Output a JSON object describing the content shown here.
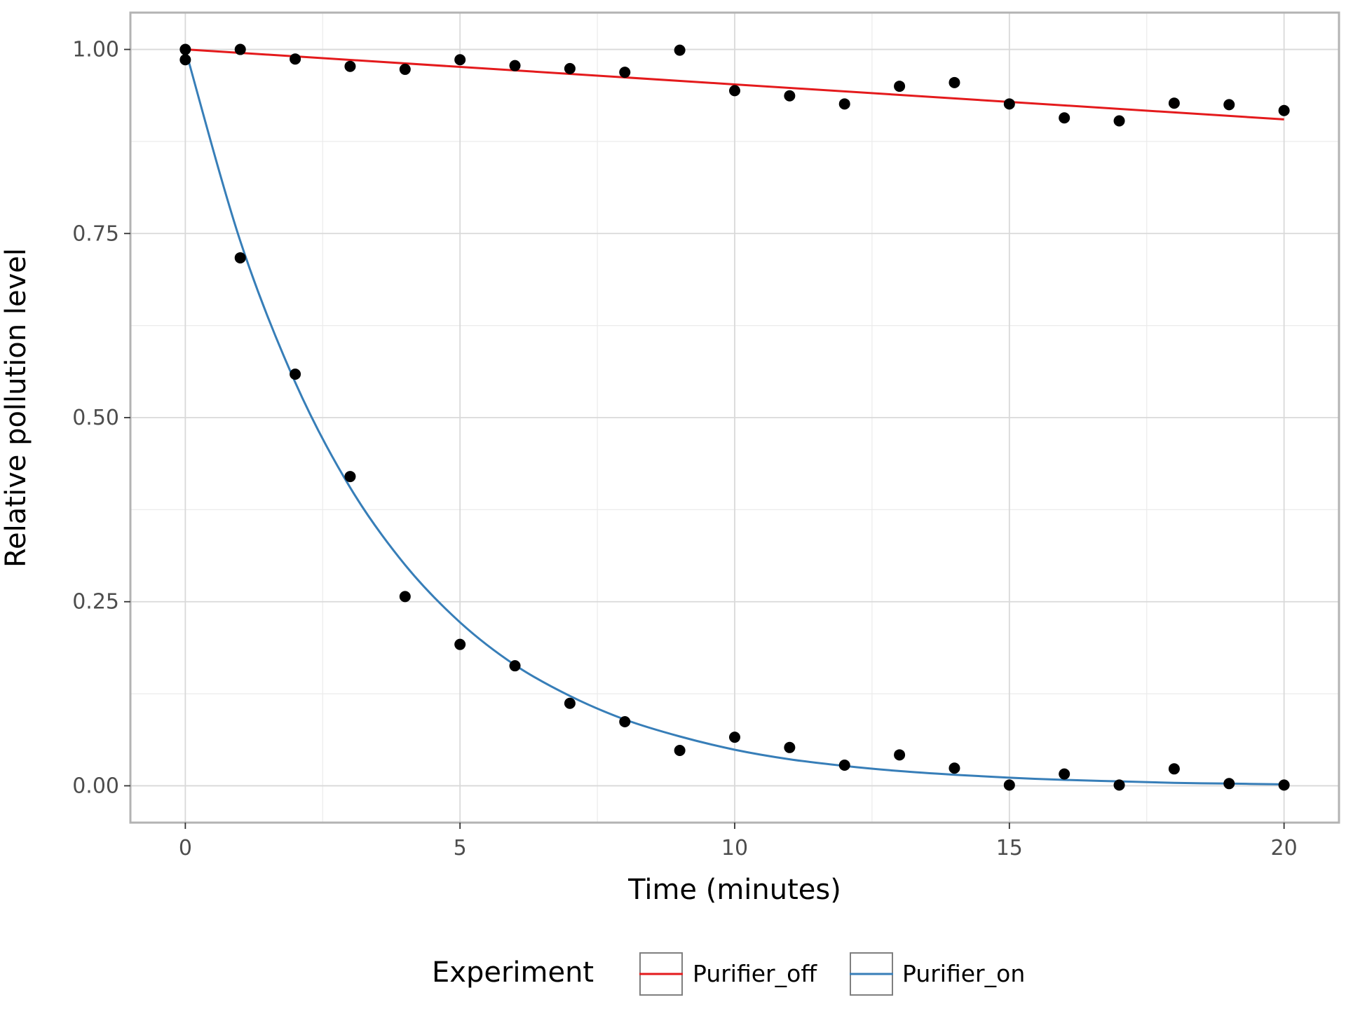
{
  "chart_data": {
    "type": "scatter",
    "title": "",
    "xlabel": "Time (minutes)",
    "ylabel": "Relative pollution level",
    "xlim": [
      -1,
      21
    ],
    "ylim": [
      -0.05,
      1.05
    ],
    "x_ticks": [
      0,
      5,
      10,
      15,
      20
    ],
    "x_tick_labels": [
      "0",
      "5",
      "10",
      "15",
      "20"
    ],
    "y_ticks": [
      0,
      0.25,
      0.5,
      0.75,
      1.0
    ],
    "y_tick_labels": [
      "0.00",
      "0.25",
      "0.50",
      "0.75",
      "1.00"
    ],
    "grid": true,
    "legend": {
      "title": "Experiment",
      "position": "bottom",
      "entries": [
        "Purifier_off",
        "Purifier_on"
      ]
    },
    "series": [
      {
        "name": "Purifier_off",
        "color": "#e41a1c",
        "points": {
          "x": [
            0,
            1,
            2,
            3,
            4,
            5,
            6,
            7,
            8,
            9,
            10,
            11,
            12,
            13,
            14,
            15,
            16,
            17,
            18,
            19,
            20
          ],
          "y": [
            1.0,
            1.0,
            0.987,
            0.977,
            0.973,
            0.986,
            0.978,
            0.974,
            0.969,
            0.999,
            0.944,
            0.937,
            0.926,
            0.95,
            0.955,
            0.926,
            0.907,
            0.903,
            0.927,
            0.925,
            0.917
          ]
        },
        "fit": {
          "x": [
            0,
            20
          ],
          "y": [
            1.0,
            0.905
          ]
        }
      },
      {
        "name": "Purifier_on",
        "color": "#377eb8",
        "points": {
          "x": [
            0,
            1,
            2,
            3,
            4,
            5,
            6,
            7,
            8,
            9,
            10,
            11,
            12,
            13,
            14,
            15,
            16,
            17,
            18,
            19,
            20
          ],
          "y": [
            0.986,
            0.717,
            0.559,
            0.42,
            0.257,
            0.192,
            0.163,
            0.112,
            0.087,
            0.048,
            0.066,
            0.052,
            0.028,
            0.042,
            0.024,
            0.001,
            0.016,
            0.001,
            0.023,
            0.003,
            0.001
          ]
        },
        "fit": {
          "x": [
            0,
            1,
            2,
            3,
            4,
            5,
            6,
            7,
            8,
            9,
            10,
            11,
            12,
            13,
            14,
            15,
            16,
            17,
            18,
            19,
            20
          ],
          "y": [
            1.0,
            0.74,
            0.548,
            0.405,
            0.3,
            0.222,
            0.164,
            0.122,
            0.09,
            0.067,
            0.049,
            0.036,
            0.027,
            0.02,
            0.015,
            0.011,
            0.008,
            0.006,
            0.004,
            0.003,
            0.002
          ]
        }
      }
    ]
  }
}
